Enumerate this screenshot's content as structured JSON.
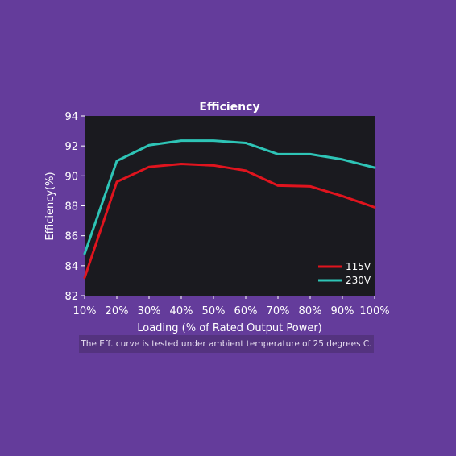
{
  "chart_data": {
    "type": "line",
    "title": "Efficiency",
    "xlabel": "Loading (% of Rated Output Power)",
    "ylabel": "Efficiency(%)",
    "categories": [
      "10%",
      "20%",
      "30%",
      "40%",
      "50%",
      "60%",
      "70%",
      "80%",
      "90%",
      "100%"
    ],
    "x": [
      10,
      20,
      30,
      40,
      50,
      60,
      70,
      80,
      90,
      100
    ],
    "xlim": [
      10,
      100
    ],
    "ylim": [
      82,
      94
    ],
    "yticks": [
      82,
      84,
      86,
      88,
      90,
      92,
      94
    ],
    "series": [
      {
        "name": "115V",
        "color": "#e0141e",
        "values": [
          83.2,
          89.6,
          90.6,
          90.8,
          90.7,
          90.35,
          89.35,
          89.3,
          88.65,
          87.9
        ]
      },
      {
        "name": "230V",
        "color": "#2ec4b6",
        "values": [
          84.8,
          91.0,
          92.05,
          92.35,
          92.35,
          92.2,
          91.45,
          91.45,
          91.1,
          90.55
        ]
      }
    ],
    "grid": false,
    "legend_position": "bottom-right",
    "plot_background": "#1a1a1f"
  },
  "footnote": "The Eff. curve is tested under ambient temperature of 25 degrees C."
}
